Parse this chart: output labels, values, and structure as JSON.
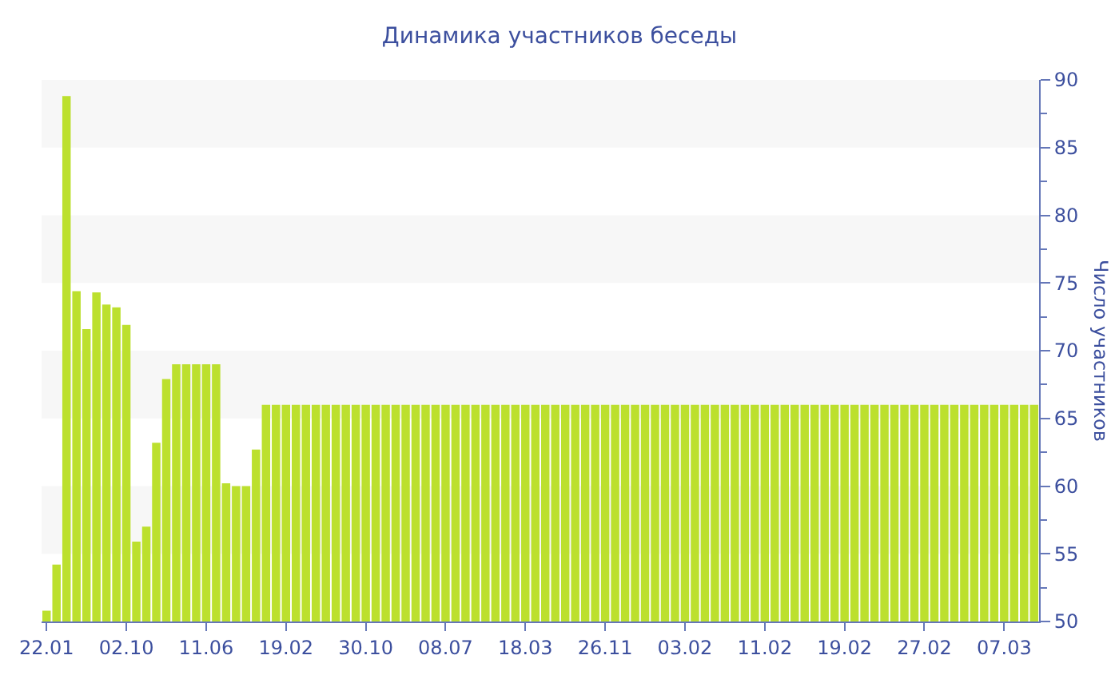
{
  "chart_data": {
    "type": "bar",
    "title": "Динамика участников беседы",
    "ylabel": "Число участников",
    "categories": [
      "22.01",
      null,
      null,
      null,
      null,
      null,
      null,
      null,
      "02.10",
      null,
      null,
      null,
      null,
      null,
      null,
      null,
      "11.06",
      null,
      null,
      null,
      null,
      null,
      null,
      null,
      "19.02",
      null,
      null,
      null,
      null,
      null,
      null,
      null,
      "30.10",
      null,
      null,
      null,
      null,
      null,
      null,
      null,
      "08.07",
      null,
      null,
      null,
      null,
      null,
      null,
      null,
      "18.03",
      null,
      null,
      null,
      null,
      null,
      null,
      null,
      "26.11",
      null,
      null,
      null,
      null,
      null,
      null,
      null,
      "03.02",
      null,
      null,
      null,
      null,
      null,
      null,
      null,
      "11.02",
      null,
      null,
      null,
      null,
      null,
      null,
      null,
      "19.02",
      null,
      null,
      null,
      null,
      null,
      null,
      null,
      "27.02",
      null,
      null,
      null,
      null,
      null,
      null,
      null,
      "07.03",
      null,
      null,
      null
    ],
    "values": [
      50.8,
      54.2,
      88.8,
      74.4,
      71.6,
      74.3,
      73.4,
      73.2,
      71.9,
      55.9,
      57,
      63.2,
      67.9,
      69,
      69,
      69,
      69,
      69,
      60.2,
      60,
      60,
      62.7,
      66,
      66,
      66,
      66,
      66,
      66,
      66,
      66,
      66,
      66,
      66,
      66,
      66,
      66,
      66,
      66,
      66,
      66,
      66,
      66,
      66,
      66,
      66,
      66,
      66,
      66,
      66,
      66,
      66,
      66,
      66,
      66,
      66,
      66,
      66,
      66,
      66,
      66,
      66,
      66,
      66,
      66,
      66,
      66,
      66,
      66,
      66,
      66,
      66,
      66,
      66,
      66,
      66,
      66,
      66,
      66,
      66,
      66,
      66,
      66,
      66,
      66,
      66,
      66,
      66,
      66,
      66,
      66,
      66,
      66,
      66,
      66,
      66,
      66,
      66,
      66,
      66,
      66
    ],
    "color": "#bce02e",
    "ylim": [
      50,
      90
    ],
    "yticks": [
      50,
      {
        "value": 52.5,
        "label": null
      },
      55,
      {
        "value": 57.5,
        "label": null
      },
      60,
      {
        "value": 62.5,
        "label": null
      },
      65,
      {
        "value": 67.5,
        "label": null
      },
      70,
      {
        "value": 72.5,
        "label": null
      },
      75,
      {
        "value": 77.5,
        "label": null
      },
      80,
      {
        "value": 82.5,
        "label": null
      },
      85,
      {
        "value": 87.5,
        "label": null
      },
      90
    ],
    "bands": [
      {
        "axis": "y",
        "from": 55,
        "to": 60,
        "color": "#f7f7f7"
      },
      {
        "axis": "y",
        "from": 65,
        "to": 70,
        "color": "#f7f7f7"
      },
      {
        "axis": "y",
        "from": 75,
        "to": 80,
        "color": "#f7f7f7"
      },
      {
        "axis": "y",
        "from": 85,
        "to": 90,
        "color": "#f7f7f7"
      }
    ]
  }
}
